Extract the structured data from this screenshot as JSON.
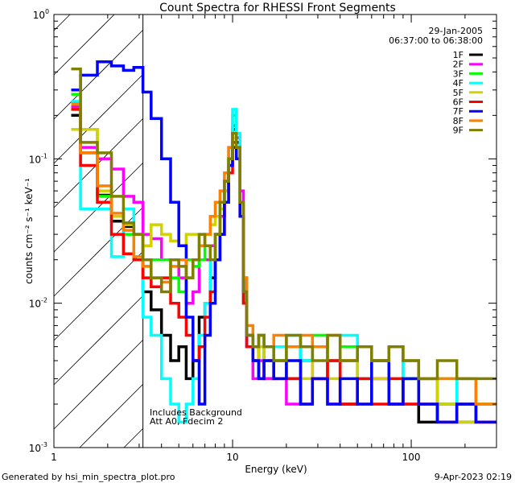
{
  "chart_data": {
    "type": "line",
    "step": true,
    "title": "Count Spectra for RHESSI Front Segments",
    "xlabel": "Energy (keV)",
    "ylabel": "counts cm⁻² s⁻¹ keV⁻¹",
    "xscale": "log",
    "yscale": "log",
    "xlim": [
      1,
      300
    ],
    "ylim": [
      0.001,
      1
    ],
    "x_ticks": [
      {
        "v": 1,
        "label": "1"
      },
      {
        "v": 10,
        "label": "10"
      },
      {
        "v": 100,
        "label": "100"
      }
    ],
    "y_ticks": [
      {
        "v": 1,
        "base": "10",
        "exp": "0"
      },
      {
        "v": 0.1,
        "base": "10",
        "exp": "-1"
      },
      {
        "v": 0.01,
        "base": "10",
        "exp": "-2"
      },
      {
        "v": 0.001,
        "base": "10",
        "exp": "-3"
      }
    ],
    "hatched_below_keV": 3.15,
    "date": "29-Jan-2005",
    "time_range": "06:37:00 to 06:38:00",
    "annotations": [
      "Includes Background",
      "Att A0, Fdecim 2"
    ],
    "legend_position": "top-right",
    "energy_edges": [
      1.25,
      1.41,
      1.75,
      2.1,
      2.45,
      2.8,
      3.15,
      3.5,
      4.0,
      4.5,
      5.0,
      5.5,
      6.0,
      6.5,
      7.0,
      7.5,
      8.0,
      8.5,
      9.0,
      9.5,
      10.0,
      10.5,
      11.0,
      11.5,
      12.0,
      13.0,
      14.0,
      15.0,
      17,
      20,
      24,
      28,
      34,
      40,
      50,
      60,
      75,
      90,
      110,
      140,
      180,
      230,
      300
    ],
    "series": [
      {
        "name": "1F",
        "color": "#000000",
        "values": [
          0.2,
          0.11,
          0.056,
          0.037,
          0.034,
          0.03,
          0.012,
          0.009,
          0.006,
          0.004,
          0.005,
          0.003,
          0.004,
          0.008,
          0.01,
          0.015,
          0.03,
          0.04,
          0.06,
          0.1,
          0.16,
          0.13,
          0.05,
          0.015,
          0.005,
          0.004,
          0.005,
          0.003,
          0.004,
          0.003,
          0.005,
          0.003,
          0.004,
          0.002,
          0.003,
          0.003,
          0.002,
          0.003,
          0.0015,
          0.002,
          0.0015,
          0.002
        ]
      },
      {
        "name": "2F",
        "color": "#ff00ff",
        "values": [
          0.23,
          0.12,
          0.1,
          0.085,
          0.055,
          0.05,
          0.03,
          0.028,
          0.02,
          0.02,
          0.015,
          0.01,
          0.012,
          0.02,
          0.02,
          0.025,
          0.03,
          0.04,
          0.07,
          0.09,
          0.17,
          0.14,
          0.06,
          0.01,
          0.005,
          0.003,
          0.004,
          0.003,
          0.003,
          0.002,
          0.004,
          0.003,
          0.002,
          0.004,
          0.002,
          0.003,
          0.002,
          0.002,
          0.003,
          0.0015,
          0.002,
          0.0015
        ]
      },
      {
        "name": "3F",
        "color": "#00ff00",
        "values": [
          0.28,
          0.16,
          0.055,
          0.04,
          0.03,
          0.02,
          0.018,
          0.02,
          0.02,
          0.015,
          0.012,
          0.02,
          0.018,
          0.02,
          0.025,
          0.02,
          0.03,
          0.05,
          0.06,
          0.1,
          0.2,
          0.12,
          0.05,
          0.01,
          0.006,
          0.004,
          0.006,
          0.005,
          0.004,
          0.005,
          0.004,
          0.006,
          0.004,
          0.005,
          0.003,
          0.004,
          0.005,
          0.003,
          0.002,
          0.003,
          0.002,
          0.002
        ]
      },
      {
        "name": "4F",
        "color": "#00ffff",
        "values": [
          0.25,
          0.045,
          0.045,
          0.021,
          0.045,
          0.02,
          0.008,
          0.006,
          0.003,
          0.002,
          0.0015,
          0.002,
          0.003,
          0.006,
          0.01,
          0.02,
          0.03,
          0.05,
          0.07,
          0.12,
          0.22,
          0.15,
          0.05,
          0.012,
          0.006,
          0.005,
          0.006,
          0.004,
          0.005,
          0.006,
          0.004,
          0.005,
          0.004,
          0.006,
          0.003,
          0.004,
          0.003,
          0.004,
          0.003,
          0.002,
          0.003,
          0.002
        ]
      },
      {
        "name": "5F",
        "color": "#d2d200",
        "values": [
          0.16,
          0.16,
          0.06,
          0.04,
          0.035,
          0.03,
          0.025,
          0.035,
          0.03,
          0.027,
          0.025,
          0.03,
          0.03,
          0.025,
          0.03,
          0.035,
          0.04,
          0.045,
          0.06,
          0.1,
          0.14,
          0.12,
          0.05,
          0.015,
          0.006,
          0.004,
          0.005,
          0.004,
          0.003,
          0.004,
          0.003,
          0.005,
          0.003,
          0.004,
          0.002,
          0.003,
          0.003,
          0.002,
          0.003,
          0.002,
          0.0015,
          0.002
        ]
      },
      {
        "name": "6F",
        "color": "#ff0000",
        "values": [
          0.22,
          0.09,
          0.05,
          0.03,
          0.022,
          0.02,
          0.015,
          0.013,
          0.015,
          0.01,
          0.008,
          0.006,
          0.004,
          0.005,
          0.008,
          0.012,
          0.02,
          0.03,
          0.05,
          0.08,
          0.13,
          0.1,
          0.04,
          0.01,
          0.005,
          0.004,
          0.003,
          0.004,
          0.003,
          0.003,
          0.002,
          0.003,
          0.004,
          0.002,
          0.003,
          0.002,
          0.003,
          0.002,
          0.002,
          0.0015,
          0.002,
          0.0015
        ]
      },
      {
        "name": "7F",
        "color": "#0000ff",
        "values": [
          0.3,
          0.38,
          0.47,
          0.44,
          0.41,
          0.43,
          0.29,
          0.19,
          0.1,
          0.05,
          0.025,
          0.008,
          0.004,
          0.002,
          0.006,
          0.01,
          0.02,
          0.03,
          0.05,
          0.09,
          0.12,
          0.1,
          0.04,
          0.012,
          0.006,
          0.004,
          0.003,
          0.004,
          0.003,
          0.004,
          0.002,
          0.003,
          0.002,
          0.003,
          0.002,
          0.004,
          0.002,
          0.003,
          0.002,
          0.0015,
          0.002,
          0.0015
        ]
      },
      {
        "name": "8F",
        "color": "#ff8000",
        "values": [
          0.24,
          0.11,
          0.065,
          0.042,
          0.032,
          0.021,
          0.018,
          0.015,
          0.014,
          0.018,
          0.02,
          0.015,
          0.02,
          0.025,
          0.03,
          0.04,
          0.05,
          0.06,
          0.08,
          0.12,
          0.15,
          0.12,
          0.05,
          0.015,
          0.007,
          0.005,
          0.006,
          0.005,
          0.006,
          0.005,
          0.006,
          0.005,
          0.006,
          0.004,
          0.005,
          0.004,
          0.005,
          0.004,
          0.003,
          0.003,
          0.003,
          0.002
        ]
      },
      {
        "name": "9F",
        "color": "#808000",
        "values": [
          0.42,
          0.13,
          0.11,
          0.055,
          0.036,
          0.03,
          0.02,
          0.015,
          0.012,
          0.02,
          0.018,
          0.015,
          0.02,
          0.03,
          0.025,
          0.02,
          0.03,
          0.05,
          0.07,
          0.1,
          0.15,
          0.12,
          0.05,
          0.012,
          0.006,
          0.005,
          0.006,
          0.005,
          0.004,
          0.006,
          0.005,
          0.004,
          0.006,
          0.004,
          0.005,
          0.004,
          0.005,
          0.004,
          0.003,
          0.004,
          0.003,
          0.003
        ]
      }
    ]
  },
  "footer": {
    "generated_by": "Generated by hsi_min_spectra_plot.pro",
    "timestamp": "9-Apr-2023 02:19"
  }
}
